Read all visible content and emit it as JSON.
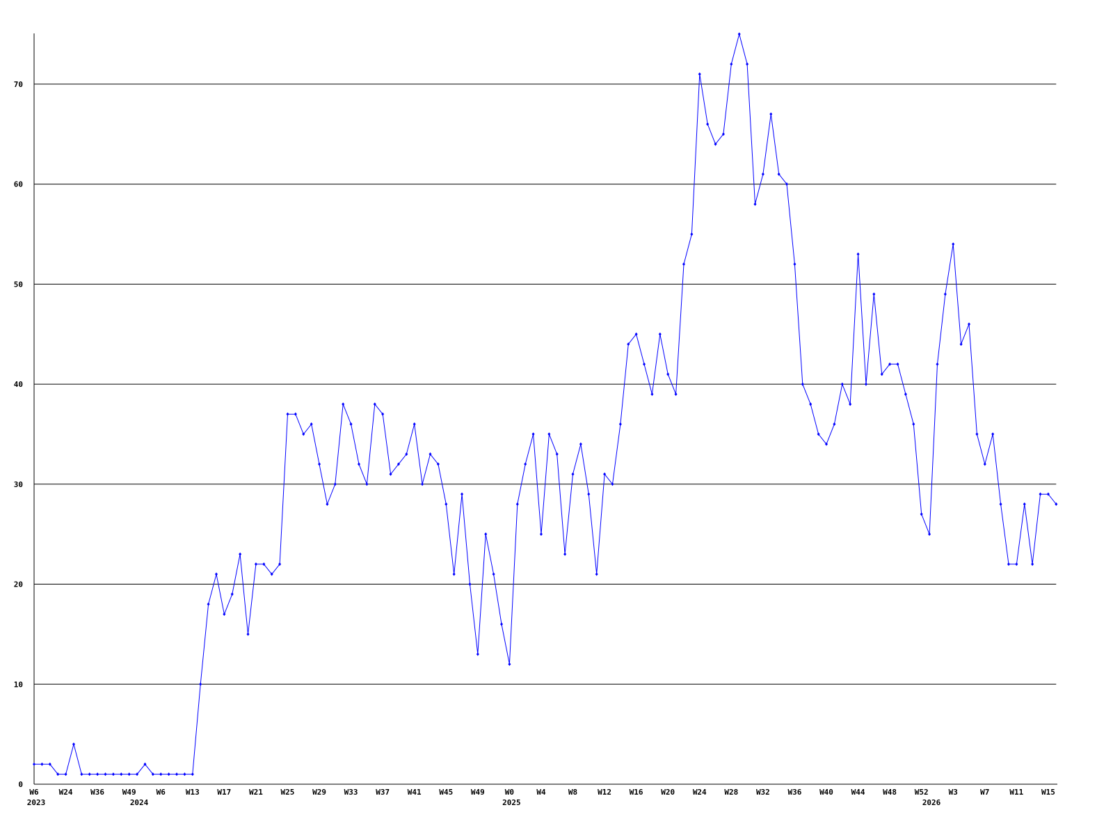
{
  "chart_data": {
    "type": "line",
    "title": "",
    "xlabel": "",
    "ylabel": "",
    "ylim": [
      0,
      75
    ],
    "yticks": [
      0,
      10,
      20,
      30,
      40,
      50,
      60,
      70
    ],
    "grid": "horizontal",
    "line_color": "#0000ff",
    "values": [
      2,
      2,
      2,
      1,
      1,
      4,
      1,
      1,
      1,
      1,
      1,
      1,
      1,
      1,
      2,
      1,
      1,
      1,
      1,
      1,
      1,
      10,
      18,
      21,
      17,
      19,
      23,
      15,
      22,
      22,
      21,
      22,
      37,
      37,
      35,
      36,
      32,
      28,
      30,
      38,
      36,
      32,
      30,
      38,
      37,
      31,
      32,
      33,
      36,
      30,
      33,
      32,
      28,
      21,
      29,
      20,
      13,
      25,
      21,
      16,
      12,
      28,
      32,
      35,
      25,
      35,
      33,
      23,
      31,
      34,
      29,
      21,
      31,
      30,
      36,
      44,
      45,
      42,
      39,
      45,
      41,
      39,
      52,
      55,
      71,
      66,
      64,
      65,
      72,
      75,
      72,
      58,
      61,
      67,
      61,
      60,
      52,
      40,
      38,
      35,
      34,
      36,
      40,
      38,
      53,
      40,
      49,
      41,
      42,
      42,
      39,
      36,
      27,
      25,
      42,
      49,
      54,
      44,
      46,
      35,
      32,
      35,
      28,
      22,
      22,
      28,
      22,
      29,
      29,
      28
    ],
    "x_tick_labels": [
      {
        "point": 0,
        "label": "W6"
      },
      {
        "point": 4,
        "label": "W24"
      },
      {
        "point": 8,
        "label": "W36"
      },
      {
        "point": 12,
        "label": "W49"
      },
      {
        "point": 16,
        "label": "W6"
      },
      {
        "point": 20,
        "label": "W13"
      },
      {
        "point": 24,
        "label": "W17"
      },
      {
        "point": 28,
        "label": "W21"
      },
      {
        "point": 32,
        "label": "W25"
      },
      {
        "point": 36,
        "label": "W29"
      },
      {
        "point": 40,
        "label": "W33"
      },
      {
        "point": 44,
        "label": "W37"
      },
      {
        "point": 48,
        "label": "W41"
      },
      {
        "point": 52,
        "label": "W45"
      },
      {
        "point": 56,
        "label": "W49"
      },
      {
        "point": 60,
        "label": "W0"
      },
      {
        "point": 64,
        "label": "W4"
      },
      {
        "point": 68,
        "label": "W8"
      },
      {
        "point": 72,
        "label": "W12"
      },
      {
        "point": 76,
        "label": "W16"
      },
      {
        "point": 80,
        "label": "W20"
      },
      {
        "point": 84,
        "label": "W24"
      },
      {
        "point": 88,
        "label": "W28"
      },
      {
        "point": 92,
        "label": "W32"
      },
      {
        "point": 96,
        "label": "W36"
      },
      {
        "point": 100,
        "label": "W40"
      },
      {
        "point": 104,
        "label": "W44"
      },
      {
        "point": 108,
        "label": "W48"
      },
      {
        "point": 112,
        "label": "W52"
      },
      {
        "point": 116,
        "label": "W3"
      },
      {
        "point": 120,
        "label": "W7"
      },
      {
        "point": 124,
        "label": "W11"
      },
      {
        "point": 128,
        "label": "W15"
      }
    ],
    "year_labels": [
      {
        "point": 0,
        "label": "2023"
      },
      {
        "point": 13,
        "label": "2024"
      },
      {
        "point": 60,
        "label": "2025"
      },
      {
        "point": 113,
        "label": "2026"
      }
    ]
  }
}
